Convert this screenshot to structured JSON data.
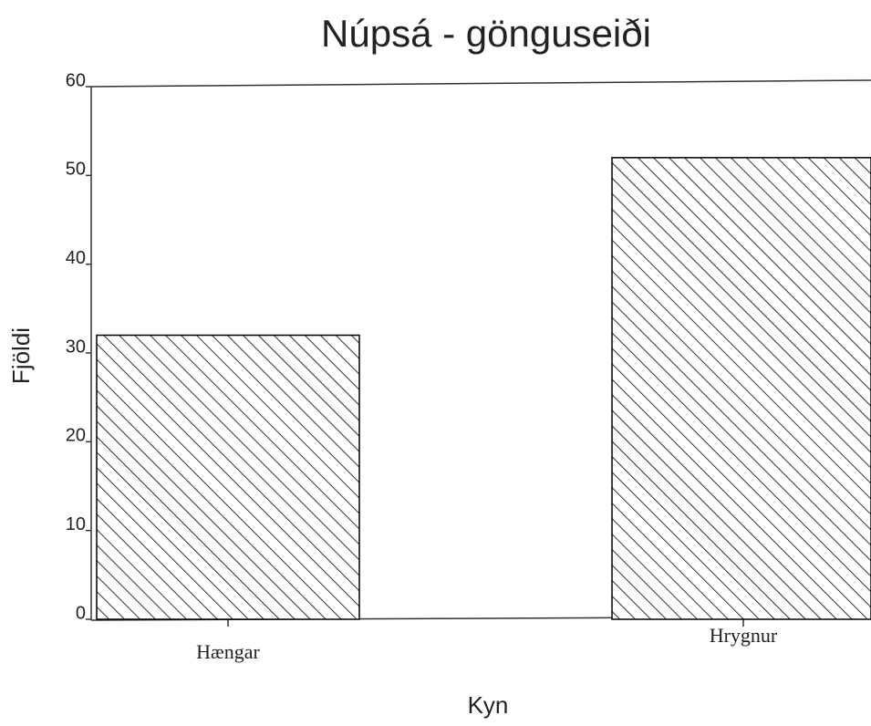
{
  "chart_data": {
    "type": "bar",
    "title": "Núpsá - gönguseiði",
    "x_label": "Kyn",
    "y_label": "Fjöldi",
    "categories": [
      "Hængar",
      "Hrygnur"
    ],
    "values": [
      32,
      52
    ],
    "color": "#000000",
    "ylim": [
      0,
      60
    ],
    "yticks": [
      0,
      10,
      20,
      30,
      40,
      50,
      60
    ],
    "grid": false
  }
}
